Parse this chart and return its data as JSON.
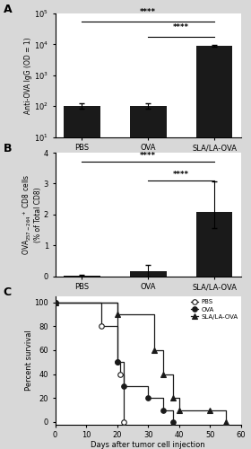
{
  "panel_A": {
    "categories": [
      "PBS",
      "OVA",
      "SLA/LA-OVA"
    ],
    "values": [
      100,
      100,
      9000
    ],
    "errors_up": [
      20,
      20,
      400
    ],
    "errors_dn": [
      20,
      20,
      400
    ],
    "ylabel": "Anti-OVA IgG (OD = 1)",
    "ylim": [
      10,
      100000
    ],
    "yticks": [
      10,
      100,
      1000,
      10000,
      100000
    ],
    "sig_lines": [
      {
        "x1": 0,
        "x2": 2,
        "y": 55000,
        "label": "****"
      },
      {
        "x1": 1,
        "x2": 2,
        "y": 18000,
        "label": "****"
      }
    ],
    "bar_color": "#1a1a1a",
    "label": "A"
  },
  "panel_B": {
    "categories": [
      "PBS",
      "OVA",
      "SLA/LA-OVA"
    ],
    "values": [
      0.02,
      0.15,
      2.07
    ],
    "errors_up": [
      0.02,
      0.2,
      1.0
    ],
    "errors_dn": [
      0.02,
      0.15,
      0.5
    ],
    "ylabel": "OVA$_{257-264}$$^+$ CD8 cells\n(% of Total CD8)",
    "ylim": [
      0,
      4
    ],
    "yticks": [
      0,
      1,
      2,
      3,
      4
    ],
    "sig_lines": [
      {
        "x1": 0,
        "x2": 2,
        "y": 3.7,
        "label": "****"
      },
      {
        "x1": 1,
        "x2": 2,
        "y": 3.1,
        "label": "****"
      }
    ],
    "bar_color": "#1a1a1a",
    "label": "B"
  },
  "panel_C": {
    "ylabel": "Percent survival",
    "xlabel": "Days after tumor cell injection",
    "xlim": [
      0,
      60
    ],
    "ylim": [
      -2,
      105
    ],
    "yticks": [
      0,
      20,
      40,
      60,
      80,
      100
    ],
    "xticks": [
      0,
      10,
      20,
      30,
      40,
      50,
      60
    ],
    "label": "C",
    "PBS": {
      "step_x": [
        0,
        15,
        20,
        21,
        22
      ],
      "step_y": [
        100,
        80,
        50,
        40,
        0
      ],
      "marker": "o",
      "mfc": "white",
      "mec": "#1a1a1a",
      "label": "PBS"
    },
    "OVA": {
      "step_x": [
        0,
        20,
        22,
        30,
        35,
        38
      ],
      "step_y": [
        100,
        50,
        30,
        20,
        10,
        0
      ],
      "marker": "o",
      "mfc": "#1a1a1a",
      "mec": "#1a1a1a",
      "label": "OVA"
    },
    "SLA": {
      "step_x": [
        0,
        20,
        32,
        35,
        38,
        40,
        50,
        55
      ],
      "step_y": [
        100,
        90,
        60,
        40,
        20,
        10,
        10,
        0
      ],
      "marker": "^",
      "mfc": "#1a1a1a",
      "mec": "#1a1a1a",
      "label": "SLA/LA-OVA"
    }
  },
  "background_color": "#d8d8d8",
  "plot_bg": "#ffffff"
}
